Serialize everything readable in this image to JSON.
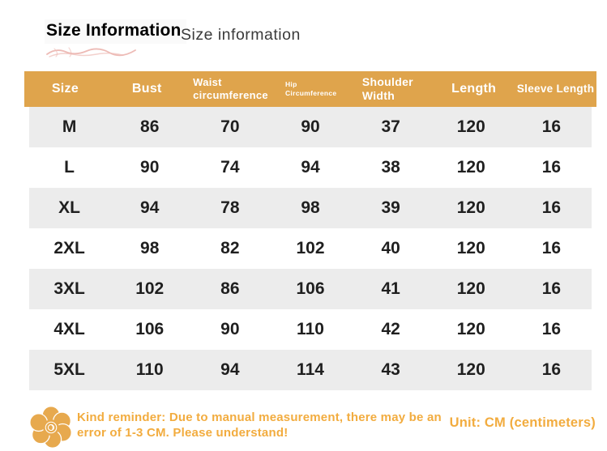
{
  "title": {
    "main": "Size Information",
    "secondary": "Size information"
  },
  "table": {
    "columns": [
      {
        "label": "Size"
      },
      {
        "label": "Bust"
      },
      {
        "label": "Waist circumference"
      },
      {
        "label": "Hip Circumference"
      },
      {
        "label": "Shoulder Width"
      },
      {
        "label": "Length"
      },
      {
        "label": "Sleeve Length"
      }
    ],
    "rows": [
      {
        "size": "M",
        "values": [
          "86",
          "70",
          "90",
          "37",
          "120",
          "16"
        ]
      },
      {
        "size": "L",
        "values": [
          "90",
          "74",
          "94",
          "38",
          "120",
          "16"
        ]
      },
      {
        "size": "XL",
        "values": [
          "94",
          "78",
          "98",
          "39",
          "120",
          "16"
        ]
      },
      {
        "size": "2XL",
        "values": [
          "98",
          "82",
          "102",
          "40",
          "120",
          "16"
        ]
      },
      {
        "size": "3XL",
        "values": [
          "102",
          "86",
          "106",
          "41",
          "120",
          "16"
        ]
      },
      {
        "size": "4XL",
        "values": [
          "106",
          "90",
          "110",
          "42",
          "120",
          "16"
        ]
      },
      {
        "size": "5XL",
        "values": [
          "110",
          "94",
          "114",
          "43",
          "120",
          "16"
        ]
      }
    ]
  },
  "footer": {
    "reminder": "Kind reminder: Due to manual measurement, there may be an error of 1-3 CM. Please understand!",
    "unit": "Unit: CM (centimeters)"
  },
  "colors": {
    "header_bg": "#DFA44C",
    "header_text": "#FFFFFF",
    "row_alt_bg": "#ECECEC",
    "body_text": "#1F1F1F",
    "footer_accent": "#F2AC3F",
    "scribble": "#D96B5F"
  },
  "icons": {
    "flower": "flower-icon",
    "scribble": "scribble-decoration"
  }
}
